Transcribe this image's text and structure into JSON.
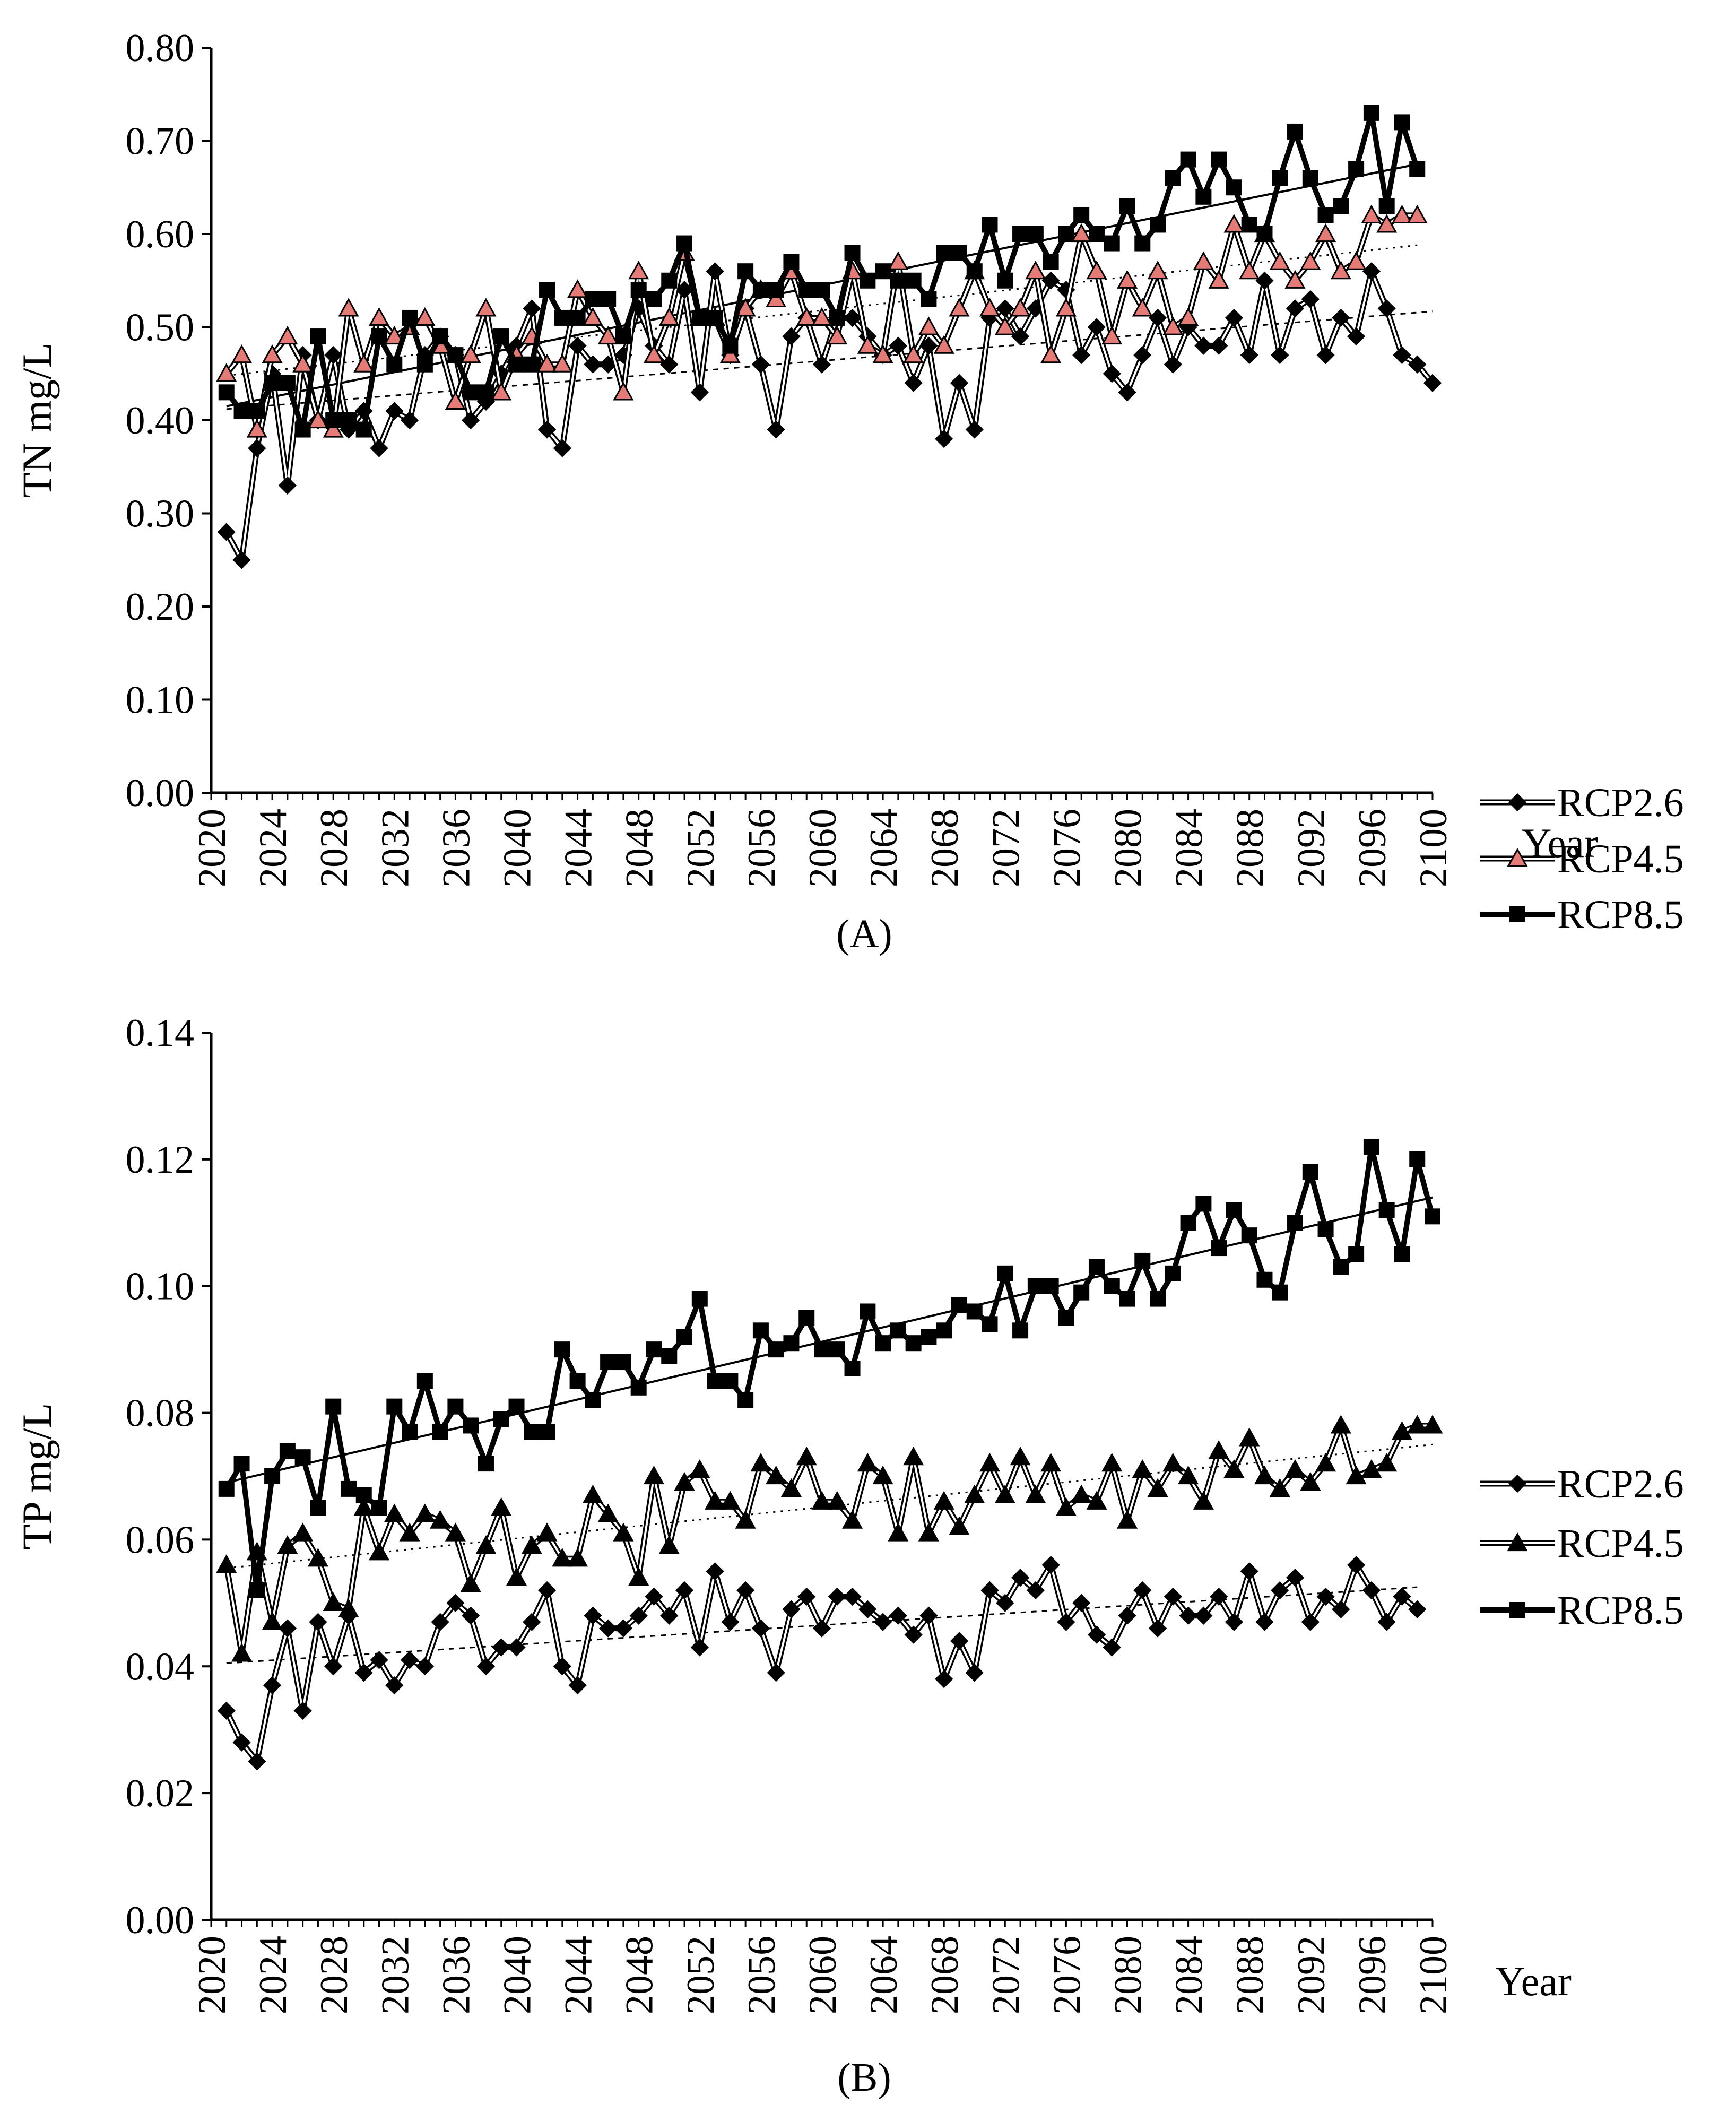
{
  "figure": {
    "panels": [
      "(A)",
      "(B)"
    ]
  },
  "chart_data": [
    {
      "type": "line",
      "panel_label": "(A)",
      "title": "",
      "xlabel": "Year",
      "ylabel": "TN mg/L",
      "xlim": [
        2020,
        2100
      ],
      "ylim": [
        0,
        0.8
      ],
      "x_ticks": [
        "2020",
        "2024",
        "2028",
        "2032",
        "2036",
        "2040",
        "2044",
        "2048",
        "2052",
        "2056",
        "2060",
        "2064",
        "2068",
        "2072",
        "2076",
        "2080",
        "2084",
        "2088",
        "2092",
        "2096",
        "2100"
      ],
      "y_ticks": [
        "0.00",
        "0.10",
        "0.20",
        "0.30",
        "0.40",
        "0.50",
        "0.60",
        "0.70",
        "0.80"
      ],
      "x_start": 2021,
      "legend_position": "right",
      "grid": false,
      "series": [
        {
          "name": "RCP2.6",
          "marker": "diamond",
          "style": "double",
          "color": "#000000",
          "marker_fill": "#000000",
          "values": [
            0.28,
            0.25,
            0.37,
            0.45,
            0.33,
            0.47,
            0.4,
            0.47,
            0.39,
            0.41,
            0.37,
            0.41,
            0.4,
            0.47,
            0.49,
            0.47,
            0.4,
            0.42,
            0.45,
            0.48,
            0.52,
            0.39,
            0.37,
            0.48,
            0.46,
            0.46,
            0.47,
            0.52,
            0.48,
            0.46,
            0.54,
            0.43,
            0.56,
            0.47,
            0.52,
            0.46,
            0.39,
            0.49,
            0.51,
            0.46,
            0.51,
            0.51,
            0.49,
            0.47,
            0.48,
            0.44,
            0.48,
            0.38,
            0.44,
            0.39,
            0.51,
            0.52,
            0.49,
            0.52,
            0.55,
            0.54,
            0.47,
            0.5,
            0.45,
            0.43,
            0.47,
            0.51,
            0.46,
            0.5,
            0.48,
            0.48,
            0.51,
            0.47,
            0.55,
            0.47,
            0.52,
            0.53,
            0.47,
            0.51,
            0.49,
            0.56,
            0.52,
            0.47,
            0.46,
            0.44
          ],
          "trend": [
            0.412,
            0.517
          ]
        },
        {
          "name": "RCP4.5",
          "marker": "triangle",
          "style": "double",
          "color": "#000000",
          "marker_fill": "#e47b76",
          "values": [
            0.45,
            0.47,
            0.39,
            0.47,
            0.49,
            0.46,
            0.4,
            0.39,
            0.52,
            0.46,
            0.51,
            0.49,
            0.5,
            0.51,
            0.48,
            0.42,
            0.47,
            0.52,
            0.43,
            0.47,
            0.49,
            0.46,
            0.46,
            0.54,
            0.51,
            0.49,
            0.43,
            0.56,
            0.47,
            0.51,
            0.58,
            0.51,
            0.51,
            0.47,
            0.52,
            0.54,
            0.53,
            0.56,
            0.51,
            0.51,
            0.49,
            0.56,
            0.48,
            0.47,
            0.57,
            0.47,
            0.5,
            0.48,
            0.52,
            0.56,
            0.52,
            0.5,
            0.52,
            0.56,
            0.47,
            0.52,
            0.6,
            0.56,
            0.49,
            0.55,
            0.52,
            0.56,
            0.5,
            0.51,
            0.57,
            0.55,
            0.61,
            0.56,
            0.6,
            0.57,
            0.55,
            0.57,
            0.6,
            0.56,
            0.57,
            0.62,
            0.61,
            0.62,
            0.62
          ],
          "trend": [
            0.448,
            0.588
          ]
        },
        {
          "name": "RCP8.5",
          "marker": "square",
          "style": "thick",
          "color": "#000000",
          "marker_fill": "#000000",
          "values": [
            0.43,
            0.41,
            0.41,
            0.44,
            0.44,
            0.39,
            0.49,
            0.4,
            0.4,
            0.39,
            0.49,
            0.46,
            0.51,
            0.46,
            0.49,
            0.47,
            0.43,
            0.43,
            0.49,
            0.46,
            0.46,
            0.54,
            0.51,
            0.51,
            0.53,
            0.53,
            0.49,
            0.54,
            0.53,
            0.55,
            0.59,
            0.51,
            0.51,
            0.48,
            0.56,
            0.54,
            0.54,
            0.57,
            0.54,
            0.54,
            0.51,
            0.58,
            0.55,
            0.56,
            0.55,
            0.55,
            0.53,
            0.58,
            0.58,
            0.56,
            0.61,
            0.55,
            0.6,
            0.6,
            0.57,
            0.6,
            0.62,
            0.6,
            0.59,
            0.63,
            0.59,
            0.61,
            0.66,
            0.68,
            0.64,
            0.68,
            0.65,
            0.61,
            0.6,
            0.66,
            0.71,
            0.66,
            0.62,
            0.63,
            0.67,
            0.73,
            0.63,
            0.72,
            0.67
          ],
          "trend": [
            0.415,
            0.675
          ]
        }
      ]
    },
    {
      "type": "line",
      "panel_label": "(B)",
      "title": "",
      "xlabel": "Year",
      "ylabel": "TP mg/L",
      "xlim": [
        2020,
        2100
      ],
      "ylim": [
        0,
        0.14
      ],
      "x_ticks": [
        "2020",
        "2024",
        "2028",
        "2032",
        "2036",
        "2040",
        "2044",
        "2048",
        "2052",
        "2056",
        "2060",
        "2064",
        "2068",
        "2072",
        "2076",
        "2080",
        "2084",
        "2088",
        "2092",
        "2096",
        "2100"
      ],
      "y_ticks": [
        "0.00",
        "0.02",
        "0.04",
        "0.06",
        "0.08",
        "0.10",
        "0.12",
        "0.14"
      ],
      "x_start": 2021,
      "legend_position": "right",
      "grid": false,
      "series": [
        {
          "name": "RCP2.6",
          "marker": "diamond",
          "style": "double",
          "color": "#000000",
          "marker_fill": "#000000",
          "values": [
            0.033,
            0.028,
            0.025,
            0.037,
            0.046,
            0.033,
            0.047,
            0.04,
            0.048,
            0.039,
            0.041,
            0.037,
            0.041,
            0.04,
            0.047,
            0.05,
            0.048,
            0.04,
            0.043,
            0.043,
            0.047,
            0.052,
            0.04,
            0.037,
            0.048,
            0.046,
            0.046,
            0.048,
            0.051,
            0.048,
            0.052,
            0.043,
            0.055,
            0.047,
            0.052,
            0.046,
            0.039,
            0.049,
            0.051,
            0.046,
            0.051,
            0.051,
            0.049,
            0.047,
            0.048,
            0.045,
            0.048,
            0.038,
            0.044,
            0.039,
            0.052,
            0.05,
            0.054,
            0.052,
            0.056,
            0.047,
            0.05,
            0.045,
            0.043,
            0.048,
            0.052,
            0.046,
            0.051,
            0.048,
            0.048,
            0.051,
            0.047,
            0.055,
            0.047,
            0.052,
            0.054,
            0.047,
            0.051,
            0.049,
            0.056,
            0.052,
            0.047,
            0.051,
            0.049
          ],
          "trend": [
            0.0405,
            0.0525
          ]
        },
        {
          "name": "RCP4.5",
          "marker": "triangle",
          "style": "double",
          "color": "#000000",
          "marker_fill": "#000000",
          "values": [
            0.056,
            0.042,
            0.058,
            0.047,
            0.059,
            0.061,
            0.057,
            0.05,
            0.049,
            0.065,
            0.058,
            0.064,
            0.061,
            0.064,
            0.063,
            0.061,
            0.053,
            0.059,
            0.065,
            0.054,
            0.059,
            0.061,
            0.057,
            0.057,
            0.067,
            0.064,
            0.061,
            0.054,
            0.07,
            0.059,
            0.069,
            0.071,
            0.066,
            0.066,
            0.063,
            0.072,
            0.07,
            0.068,
            0.073,
            0.066,
            0.066,
            0.063,
            0.072,
            0.07,
            0.061,
            0.073,
            0.061,
            0.066,
            0.062,
            0.067,
            0.072,
            0.067,
            0.073,
            0.067,
            0.072,
            0.065,
            0.067,
            0.066,
            0.072,
            0.063,
            0.071,
            0.068,
            0.072,
            0.07,
            0.066,
            0.074,
            0.071,
            0.076,
            0.07,
            0.068,
            0.071,
            0.069,
            0.072,
            0.078,
            0.07,
            0.071,
            0.072,
            0.077,
            0.078,
            0.078
          ],
          "trend": [
            0.0555,
            0.075
          ]
        },
        {
          "name": "RCP8.5",
          "marker": "square",
          "style": "thick",
          "color": "#000000",
          "marker_fill": "#000000",
          "values": [
            0.068,
            0.072,
            0.052,
            0.07,
            0.074,
            0.073,
            0.065,
            0.081,
            0.068,
            0.067,
            0.065,
            0.081,
            0.077,
            0.085,
            0.077,
            0.081,
            0.078,
            0.072,
            0.079,
            0.081,
            0.077,
            0.077,
            0.09,
            0.085,
            0.082,
            0.088,
            0.088,
            0.084,
            0.09,
            0.089,
            0.092,
            0.098,
            0.085,
            0.085,
            0.082,
            0.093,
            0.09,
            0.091,
            0.095,
            0.09,
            0.09,
            0.087,
            0.096,
            0.091,
            0.093,
            0.091,
            0.092,
            0.093,
            0.097,
            0.096,
            0.094,
            0.102,
            0.093,
            0.1,
            0.1,
            0.095,
            0.099,
            0.103,
            0.1,
            0.098,
            0.104,
            0.098,
            0.102,
            0.11,
            0.113,
            0.106,
            0.112,
            0.108,
            0.101,
            0.099,
            0.11,
            0.118,
            0.109,
            0.103,
            0.105,
            0.122,
            0.112,
            0.105,
            0.12,
            0.111
          ],
          "trend": [
            0.069,
            0.114
          ]
        }
      ]
    }
  ]
}
